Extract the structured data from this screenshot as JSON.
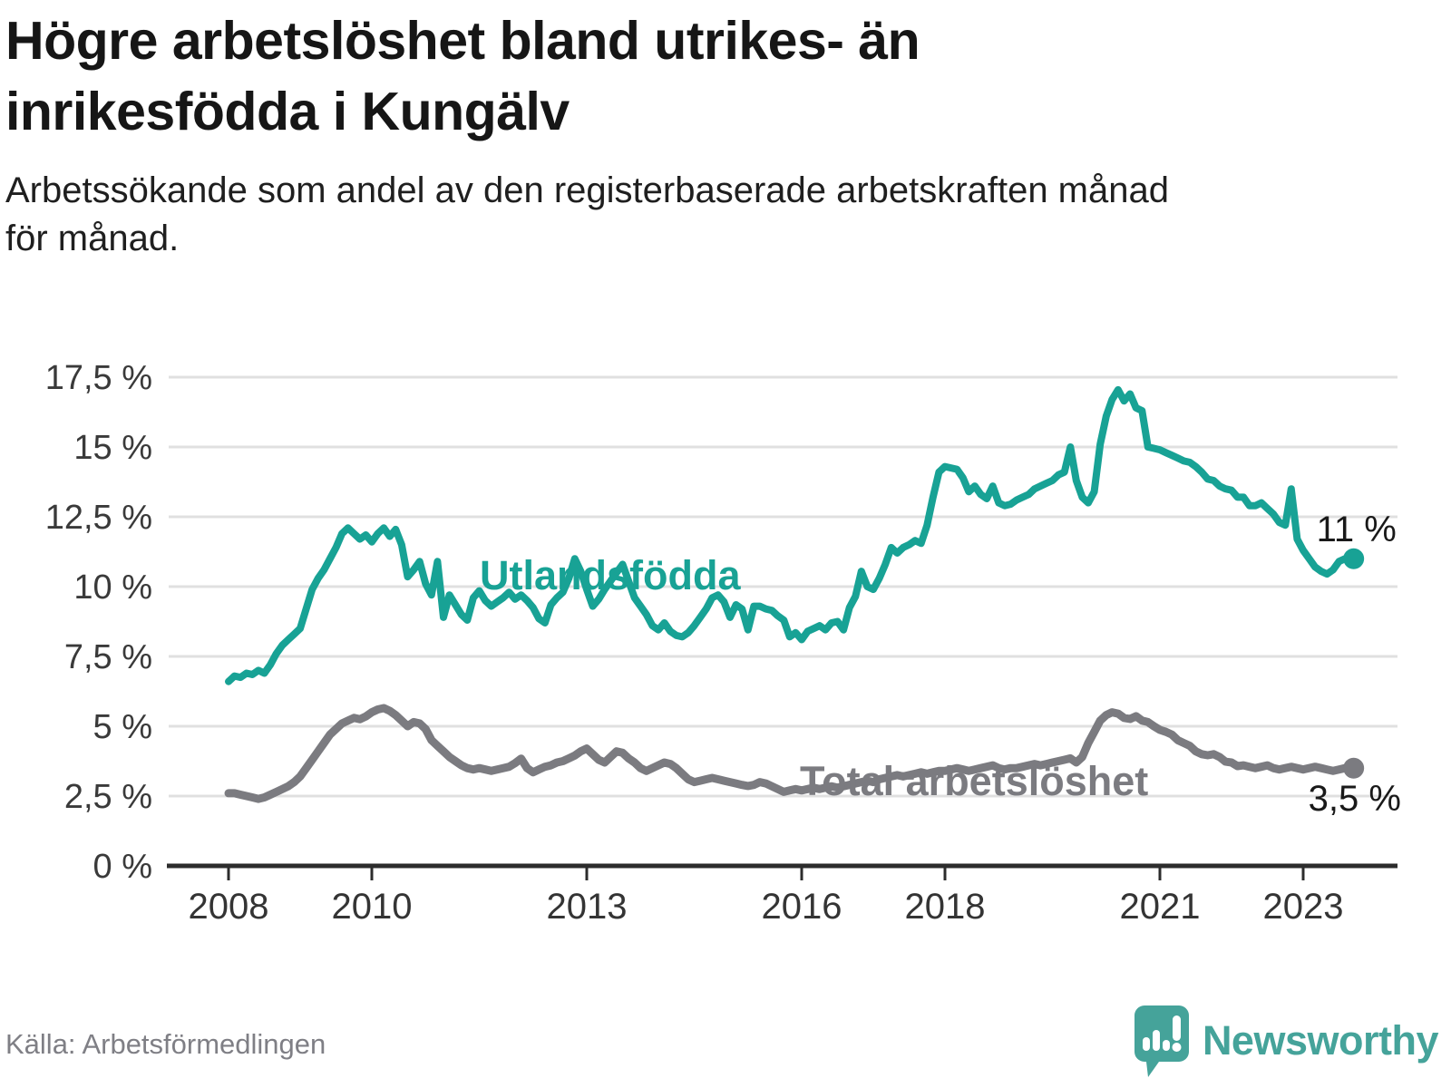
{
  "header": {
    "title_lines": [
      "Högre arbetslöshet bland utrikes- än",
      "inrikesfödda i Kungälv"
    ],
    "subtitle_lines": [
      "Arbetssökande som andel av den registerbaserade arbetskraften månad",
      "för månad."
    ]
  },
  "footer": {
    "source": "Källa: Arbetsförmedlingen",
    "brand": "Newsworthy"
  },
  "colors": {
    "foreign_born_line": "#18a295",
    "total_line": "#7b7b80",
    "grid": "#e0e0e0",
    "axis": "#2c2c2c",
    "brand_teal": "#45a39a"
  },
  "chart_data": {
    "type": "line",
    "frequency": "monthly",
    "x_start": {
      "year": 2008,
      "month": 1
    },
    "x_end": {
      "year": 2023,
      "month": 9
    },
    "ylim": [
      0,
      17.5
    ],
    "grid": true,
    "legend_position": "inline-labels",
    "y_ticks": [
      {
        "label": "17,5 %",
        "value": 17.5
      },
      {
        "label": "15 %",
        "value": 15
      },
      {
        "label": "12,5 %",
        "value": 12.5
      },
      {
        "label": "10 %",
        "value": 10
      },
      {
        "label": "7,5 %",
        "value": 7.5
      },
      {
        "label": "5 %",
        "value": 5
      },
      {
        "label": "2,5 %",
        "value": 2.5
      },
      {
        "label": "0 %",
        "value": 0
      }
    ],
    "x_ticks": [
      {
        "label": "2008",
        "year": 2008
      },
      {
        "label": "2010",
        "year": 2010
      },
      {
        "label": "2013",
        "year": 2013
      },
      {
        "label": "2016",
        "year": 2016
      },
      {
        "label": "2018",
        "year": 2018
      },
      {
        "label": "2021",
        "year": 2021
      },
      {
        "label": "2023",
        "year": 2023
      }
    ],
    "series": [
      {
        "name": "Utlandsfödda",
        "color": "#18a295",
        "end_label": "11 %",
        "values": [
          6.6,
          6.8,
          6.75,
          6.9,
          6.85,
          7.0,
          6.9,
          7.2,
          7.6,
          7.9,
          8.1,
          8.3,
          8.5,
          9.2,
          9.9,
          10.3,
          10.6,
          11.0,
          11.4,
          11.9,
          12.1,
          11.9,
          11.7,
          11.85,
          11.6,
          11.9,
          12.1,
          11.8,
          12.05,
          11.5,
          10.35,
          10.6,
          10.9,
          10.1,
          9.7,
          10.9,
          8.9,
          9.7,
          9.35,
          9.0,
          8.8,
          9.6,
          9.85,
          9.5,
          9.3,
          9.45,
          9.6,
          9.8,
          9.55,
          9.7,
          9.5,
          9.25,
          8.85,
          8.7,
          9.35,
          9.6,
          9.8,
          10.3,
          11.0,
          10.55,
          9.9,
          9.3,
          9.55,
          9.9,
          10.2,
          10.5,
          10.8,
          10.2,
          9.6,
          9.3,
          9.0,
          8.6,
          8.45,
          8.7,
          8.4,
          8.25,
          8.2,
          8.35,
          8.6,
          8.9,
          9.2,
          9.6,
          9.7,
          9.45,
          8.9,
          9.35,
          9.2,
          8.45,
          9.3,
          9.3,
          9.2,
          9.15,
          8.95,
          8.8,
          8.2,
          8.35,
          8.1,
          8.4,
          8.5,
          8.6,
          8.45,
          8.7,
          8.75,
          8.45,
          9.25,
          9.65,
          10.55,
          10.0,
          9.9,
          10.3,
          10.8,
          11.4,
          11.2,
          11.4,
          11.5,
          11.65,
          11.55,
          12.2,
          13.2,
          14.1,
          14.3,
          14.25,
          14.2,
          13.9,
          13.4,
          13.6,
          13.3,
          13.15,
          13.6,
          13.0,
          12.9,
          12.95,
          13.1,
          13.2,
          13.3,
          13.5,
          13.6,
          13.7,
          13.8,
          14.0,
          14.1,
          15.0,
          13.8,
          13.2,
          13.0,
          13.4,
          15.1,
          16.1,
          16.7,
          17.05,
          16.65,
          16.9,
          16.4,
          16.3,
          15.0,
          14.95,
          14.9,
          14.8,
          14.7,
          14.6,
          14.5,
          14.45,
          14.3,
          14.1,
          13.85,
          13.8,
          13.6,
          13.5,
          13.45,
          13.2,
          13.2,
          12.9,
          12.9,
          13.0,
          12.8,
          12.6,
          12.3,
          12.2,
          13.5,
          11.7,
          11.3,
          11.0,
          10.7,
          10.55,
          10.45,
          10.6,
          10.9,
          11.0,
          11.0
        ]
      },
      {
        "name": "Total arbetslöshet",
        "color": "#7b7b80",
        "end_label": "3,5 %",
        "values": [
          2.6,
          2.6,
          2.55,
          2.5,
          2.45,
          2.4,
          2.45,
          2.55,
          2.65,
          2.75,
          2.85,
          3.0,
          3.2,
          3.5,
          3.8,
          4.1,
          4.4,
          4.7,
          4.9,
          5.1,
          5.2,
          5.3,
          5.25,
          5.35,
          5.5,
          5.6,
          5.65,
          5.55,
          5.4,
          5.2,
          5.0,
          5.15,
          5.1,
          4.9,
          4.5,
          4.3,
          4.1,
          3.9,
          3.75,
          3.6,
          3.5,
          3.45,
          3.5,
          3.45,
          3.4,
          3.45,
          3.5,
          3.55,
          3.68,
          3.84,
          3.5,
          3.35,
          3.45,
          3.55,
          3.6,
          3.7,
          3.75,
          3.85,
          3.95,
          4.1,
          4.2,
          4.0,
          3.8,
          3.7,
          3.9,
          4.1,
          4.05,
          3.85,
          3.7,
          3.5,
          3.4,
          3.5,
          3.6,
          3.7,
          3.65,
          3.5,
          3.3,
          3.1,
          3.0,
          3.05,
          3.1,
          3.15,
          3.1,
          3.05,
          3.0,
          2.95,
          2.9,
          2.86,
          2.9,
          3.0,
          2.95,
          2.85,
          2.75,
          2.65,
          2.7,
          2.75,
          2.7,
          2.75,
          2.8,
          2.75,
          2.8,
          2.85,
          2.8,
          2.85,
          2.9,
          2.95,
          3.0,
          3.05,
          3.0,
          3.1,
          3.15,
          3.2,
          3.25,
          3.2,
          3.25,
          3.3,
          3.35,
          3.3,
          3.35,
          3.4,
          3.4,
          3.45,
          3.5,
          3.45,
          3.4,
          3.45,
          3.5,
          3.55,
          3.6,
          3.5,
          3.45,
          3.5,
          3.5,
          3.55,
          3.6,
          3.65,
          3.6,
          3.65,
          3.7,
          3.75,
          3.8,
          3.85,
          3.7,
          3.9,
          4.4,
          4.8,
          5.2,
          5.4,
          5.5,
          5.45,
          5.3,
          5.26,
          5.36,
          5.2,
          5.15,
          5.0,
          4.87,
          4.8,
          4.7,
          4.5,
          4.4,
          4.3,
          4.1,
          4.0,
          3.96,
          4.0,
          3.9,
          3.73,
          3.7,
          3.57,
          3.6,
          3.55,
          3.5,
          3.55,
          3.6,
          3.5,
          3.45,
          3.5,
          3.55,
          3.5,
          3.45,
          3.5,
          3.55,
          3.5,
          3.45,
          3.4,
          3.45,
          3.5,
          3.5
        ]
      }
    ]
  }
}
